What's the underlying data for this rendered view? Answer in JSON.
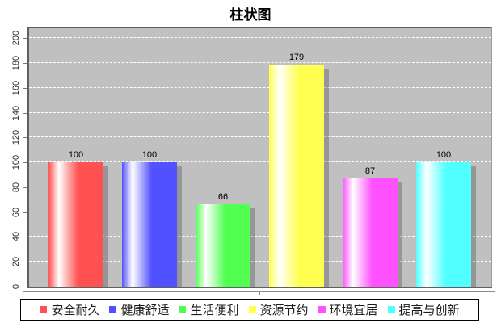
{
  "chart_data": {
    "type": "bar",
    "title": "柱状图",
    "categories": [
      ""
    ],
    "series": [
      {
        "name": "安全耐久",
        "value": 100,
        "color": "#ff5151"
      },
      {
        "name": "健康舒适",
        "value": 100,
        "color": "#5151ff"
      },
      {
        "name": "生活便利",
        "value": 66,
        "color": "#51ff51"
      },
      {
        "name": "资源节约",
        "value": 179,
        "color": "#ffff51"
      },
      {
        "name": "环境宜居",
        "value": 87,
        "color": "#ff51ff"
      },
      {
        "name": "提高与创新",
        "value": 100,
        "color": "#51ffff"
      }
    ],
    "yticks": [
      0,
      20,
      40,
      60,
      80,
      100,
      120,
      140,
      160,
      180,
      200
    ],
    "ylim": [
      0,
      208
    ],
    "grid": true,
    "gridline_color": "#ffffff",
    "plot_bg": "#c0c0c0",
    "legend_position": "bottom",
    "value_labels_shown": true
  }
}
